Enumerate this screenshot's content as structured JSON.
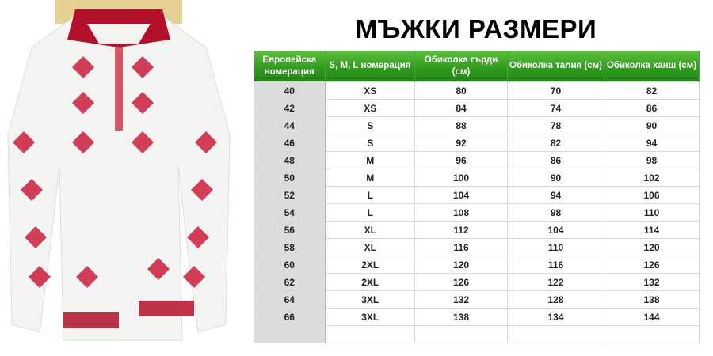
{
  "title": "МЪЖКИ РАЗМЕРИ",
  "table": {
    "headers": [
      "Европейска номерация",
      "S, M, L номерация",
      "Обиколка гърди (см)",
      "Обиколка талия (см)",
      "Обиколка ханш (см)"
    ],
    "rows": [
      [
        "40",
        "XS",
        "80",
        "70",
        "82"
      ],
      [
        "42",
        "XS",
        "84",
        "74",
        "86"
      ],
      [
        "44",
        "S",
        "88",
        "78",
        "90"
      ],
      [
        "46",
        "S",
        "92",
        "82",
        "94"
      ],
      [
        "48",
        "M",
        "96",
        "86",
        "98"
      ],
      [
        "50",
        "M",
        "100",
        "90",
        "102"
      ],
      [
        "52",
        "L",
        "104",
        "94",
        "106"
      ],
      [
        "54",
        "L",
        "108",
        "98",
        "110"
      ],
      [
        "56",
        "XL",
        "112",
        "104",
        "114"
      ],
      [
        "58",
        "XL",
        "116",
        "110",
        "120"
      ],
      [
        "60",
        "2XL",
        "120",
        "116",
        "126"
      ],
      [
        "62",
        "2XL",
        "126",
        "122",
        "132"
      ],
      [
        "64",
        "3XL",
        "132",
        "128",
        "138"
      ],
      [
        "66",
        "3XL",
        "138",
        "134",
        "144"
      ],
      [
        "",
        "",
        "",
        "",
        ""
      ]
    ]
  },
  "colors": {
    "header_green": "#2e9a1c",
    "embroidery_red": "#c8102e"
  }
}
